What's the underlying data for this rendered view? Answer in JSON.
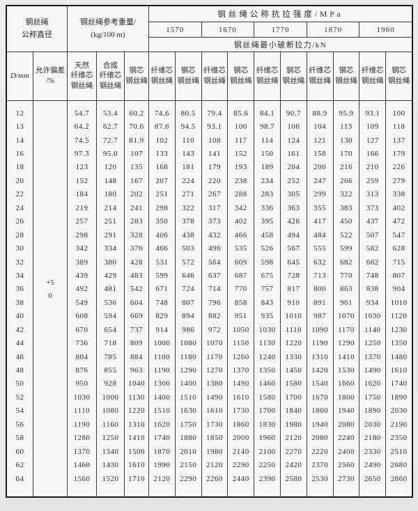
{
  "colors": {
    "page_bg": "#e9e7e3",
    "paper": "#f7f6f2",
    "ink": "#2e2b28",
    "line": "#3c3a37",
    "border_dark": "#1c1b1a"
  },
  "table": {
    "header": {
      "diameter_title": [
        "钢丝绳",
        "公称直径"
      ],
      "weight_title": [
        "钢丝绳参考重量/",
        "(kg/100 m)"
      ],
      "strength_title": "钢丝绳公称抗拉强度/MPa",
      "strength_grades": [
        "1570",
        "1670",
        "1770",
        "1870",
        "1960"
      ],
      "breaking_title": "钢丝绳最小破断拉力/kN",
      "col_d": "D/mm",
      "col_tolerance": [
        "允许偏差",
        "/%"
      ],
      "col_weight_natural": [
        "天然",
        "纤维芯",
        "钢丝绳"
      ],
      "col_weight_synthetic": [
        "合成",
        "纤维芯",
        "钢丝绳"
      ],
      "col_weight_steel": [
        "钢芯",
        "钢丝绳"
      ],
      "col_fiber_core": [
        "纤维芯",
        "钢丝绳"
      ],
      "col_steel_core": [
        "钢芯",
        "钢丝绳"
      ]
    },
    "tolerance": [
      "+5",
      "0"
    ],
    "rows": [
      {
        "d": "12",
        "w": [
          "54.7",
          "53.4",
          "60.2"
        ],
        "f": [
          "74.6",
          "80.5",
          "79.4",
          "85.6",
          "84.1",
          "90.7",
          "88.9",
          "95.9",
          "93.1",
          "100"
        ]
      },
      {
        "d": "13",
        "w": [
          "64.2",
          "62.7",
          "70.6"
        ],
        "f": [
          "87.6",
          "94.5",
          "93.1",
          "100",
          "98.7",
          "106",
          "104",
          "113",
          "109",
          "118"
        ]
      },
      {
        "d": "14",
        "w": [
          "74.5",
          "72.7",
          "81.9"
        ],
        "f": [
          "102",
          "110",
          "108",
          "117",
          "114",
          "124",
          "121",
          "130",
          "127",
          "137"
        ]
      },
      {
        "d": "16",
        "w": [
          "97.3",
          "95.0",
          "107"
        ],
        "f": [
          "133",
          "143",
          "141",
          "152",
          "150",
          "161",
          "158",
          "170",
          "166",
          "179"
        ]
      },
      {
        "d": "18",
        "w": [
          "123",
          "120",
          "135"
        ],
        "f": [
          "168",
          "181",
          "179",
          "193",
          "189",
          "204",
          "200",
          "216",
          "210",
          "226"
        ]
      },
      {
        "d": "20",
        "w": [
          "152",
          "148",
          "167"
        ],
        "f": [
          "207",
          "224",
          "220",
          "238",
          "234",
          "252",
          "247",
          "266",
          "259",
          "279"
        ]
      },
      {
        "d": "22",
        "w": [
          "184",
          "180",
          "202"
        ],
        "f": [
          "251",
          "271",
          "267",
          "288",
          "283",
          "305",
          "299",
          "322",
          "313",
          "338"
        ]
      },
      {
        "d": "24",
        "w": [
          "219",
          "214",
          "241"
        ],
        "f": [
          "298",
          "322",
          "317",
          "342",
          "336",
          "363",
          "355",
          "383",
          "373",
          "402"
        ]
      },
      {
        "d": "26",
        "w": [
          "257",
          "251",
          "283"
        ],
        "f": [
          "350",
          "378",
          "373",
          "402",
          "395",
          "426",
          "417",
          "450",
          "437",
          "472"
        ]
      },
      {
        "d": "28",
        "w": [
          "298",
          "291",
          "328"
        ],
        "f": [
          "406",
          "438",
          "432",
          "466",
          "458",
          "494",
          "484",
          "522",
          "507",
          "547"
        ]
      },
      {
        "d": "30",
        "w": [
          "342",
          "334",
          "376"
        ],
        "f": [
          "466",
          "503",
          "496",
          "535",
          "526",
          "567",
          "555",
          "599",
          "582",
          "628"
        ]
      },
      {
        "d": "32",
        "w": [
          "389",
          "380",
          "428"
        ],
        "f": [
          "531",
          "572",
          "564",
          "609",
          "598",
          "645",
          "632",
          "682",
          "662",
          "715"
        ]
      },
      {
        "d": "34",
        "w": [
          "439",
          "429",
          "483"
        ],
        "f": [
          "599",
          "646",
          "637",
          "687",
          "675",
          "728",
          "713",
          "770",
          "748",
          "807"
        ]
      },
      {
        "d": "36",
        "w": [
          "492",
          "481",
          "542"
        ],
        "f": [
          "671",
          "724",
          "714",
          "770",
          "757",
          "817",
          "800",
          "863",
          "838",
          "904"
        ]
      },
      {
        "d": "38",
        "w": [
          "549",
          "536",
          "604"
        ],
        "f": [
          "748",
          "807",
          "796",
          "858",
          "843",
          "910",
          "891",
          "961",
          "934",
          "1010"
        ]
      },
      {
        "d": "40",
        "w": [
          "608",
          "594",
          "669"
        ],
        "f": [
          "829",
          "894",
          "882",
          "951",
          "935",
          "1010",
          "987",
          "1070",
          "1030",
          "1120"
        ]
      },
      {
        "d": "42",
        "w": [
          "670",
          "654",
          "737"
        ],
        "f": [
          "914",
          "986",
          "972",
          "1050",
          "1030",
          "1110",
          "1090",
          "1170",
          "1140",
          "1230"
        ]
      },
      {
        "d": "44",
        "w": [
          "736",
          "718",
          "809"
        ],
        "f": [
          "1000",
          "1080",
          "1070",
          "1150",
          "1130",
          "1220",
          "1190",
          "1290",
          "1250",
          "1350"
        ]
      },
      {
        "d": "46",
        "w": [
          "804",
          "785",
          "884"
        ],
        "f": [
          "1100",
          "1180",
          "1170",
          "1260",
          "1240",
          "1330",
          "1310",
          "1410",
          "1370",
          "1480"
        ]
      },
      {
        "d": "48",
        "w": [
          "876",
          "855",
          "963"
        ],
        "f": [
          "1190",
          "1290",
          "1270",
          "1370",
          "1350",
          "1450",
          "1420",
          "1530",
          "1490",
          "1610"
        ]
      },
      {
        "d": "50",
        "w": [
          "950",
          "928",
          "1040"
        ],
        "f": [
          "1300",
          "1400",
          "1380",
          "1490",
          "1460",
          "1580",
          "1540",
          "1660",
          "1620",
          "1740"
        ]
      },
      {
        "d": "52",
        "w": [
          "1030",
          "1000",
          "1130"
        ],
        "f": [
          "1400",
          "1510",
          "1490",
          "1610",
          "1580",
          "1700",
          "1670",
          "1800",
          "1750",
          "1890"
        ]
      },
      {
        "d": "54",
        "w": [
          "1110",
          "1080",
          "1220"
        ],
        "f": [
          "1510",
          "1630",
          "1610",
          "1730",
          "1700",
          "1840",
          "1800",
          "1940",
          "1890",
          "2030"
        ]
      },
      {
        "d": "56",
        "w": [
          "1190",
          "1160",
          "1310"
        ],
        "f": [
          "1620",
          "1750",
          "1730",
          "1860",
          "1830",
          "1980",
          "1940",
          "2080",
          "2030",
          "2190"
        ]
      },
      {
        "d": "58",
        "w": [
          "1280",
          "1250",
          "1410"
        ],
        "f": [
          "1740",
          "1880",
          "1850",
          "2000",
          "1960",
          "2120",
          "2080",
          "2240",
          "2180",
          "2350"
        ]
      },
      {
        "d": "60",
        "w": [
          "1370",
          "1340",
          "1500"
        ],
        "f": [
          "1870",
          "2010",
          "1980",
          "2140",
          "2100",
          "2270",
          "2220",
          "2400",
          "2330",
          "2510"
        ]
      },
      {
        "d": "62",
        "w": [
          "1460",
          "1430",
          "1610"
        ],
        "f": [
          "1990",
          "2150",
          "2120",
          "2290",
          "2250",
          "2420",
          "2370",
          "2560",
          "2490",
          "2680"
        ]
      },
      {
        "d": "64",
        "w": [
          "1560",
          "1520",
          "1710"
        ],
        "f": [
          "2120",
          "2290",
          "2260",
          "2440",
          "2390",
          "2580",
          "2530",
          "2730",
          "2650",
          "2860"
        ]
      }
    ]
  }
}
